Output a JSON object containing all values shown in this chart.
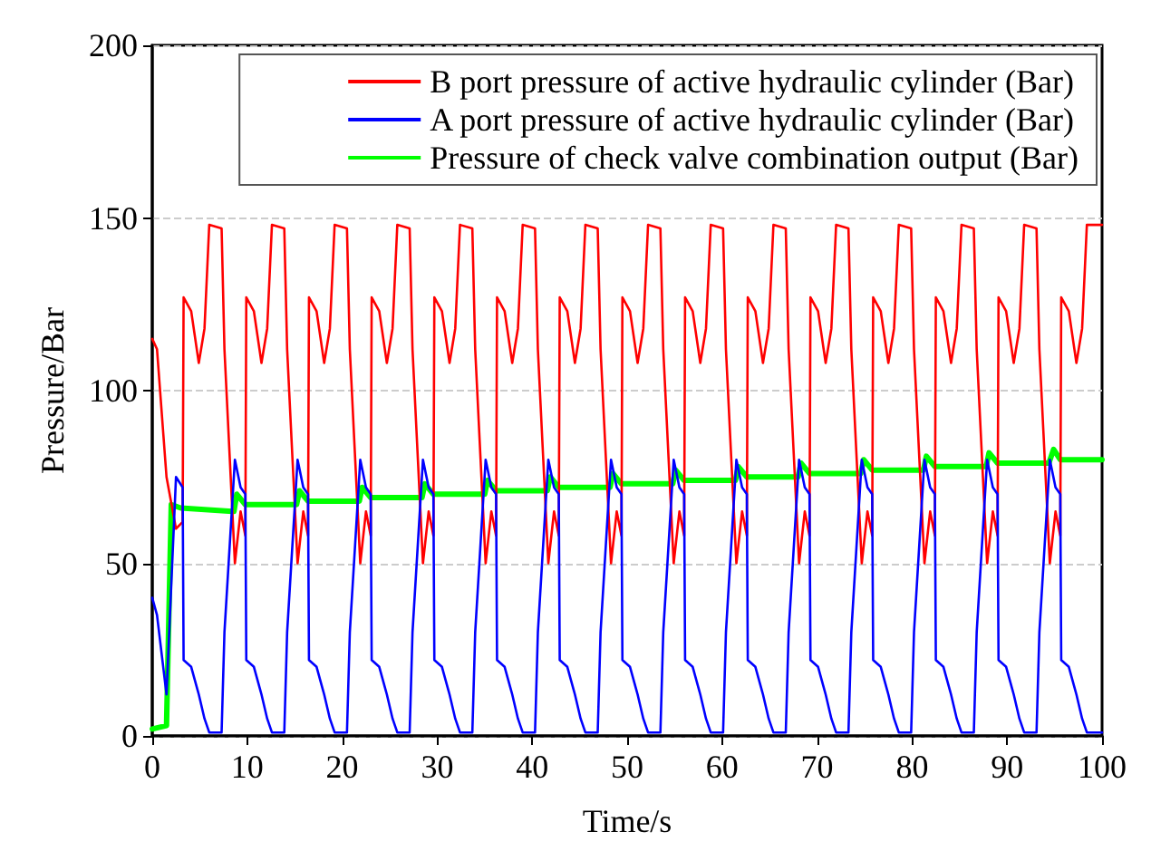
{
  "chart_data": {
    "type": "line",
    "xlabel": "Time/s",
    "ylabel": "Pressure/Bar",
    "xlim": [
      0,
      100
    ],
    "xticks": [
      0,
      10,
      20,
      30,
      40,
      50,
      60,
      70,
      80,
      90,
      100
    ],
    "ylim": [
      0,
      200
    ],
    "yticks": [
      0,
      50,
      100,
      150,
      200
    ],
    "grid": "y",
    "legend": "top right",
    "marker": "none",
    "line_style": "solid",
    "x": [
      0,
      0.5,
      1.5,
      2.5,
      3.2,
      3.3,
      4.1,
      4.9,
      5.5,
      6.0,
      7.3,
      7.6,
      8.7,
      9.3,
      9.8,
      9.9,
      10.7,
      11.5,
      12.1,
      12.6,
      13.9,
      14.2,
      15.3,
      15.9,
      16.4,
      16.5,
      17.3,
      18.1,
      18.7,
      19.2,
      20.5,
      20.8,
      21.9,
      22.5,
      23.0,
      23.1,
      23.9,
      24.7,
      25.3,
      25.8,
      27.1,
      27.4,
      28.5,
      29.1,
      29.6,
      29.7,
      30.5,
      31.3,
      31.9,
      32.4,
      33.7,
      34.0,
      35.1,
      35.7,
      36.2,
      36.3,
      37.1,
      37.9,
      38.5,
      39.0,
      40.3,
      40.6,
      41.7,
      42.3,
      42.8,
      42.9,
      43.7,
      44.5,
      45.1,
      45.6,
      46.9,
      47.2,
      48.3,
      48.9,
      49.4,
      49.5,
      50.3,
      51.1,
      51.7,
      52.2,
      53.5,
      53.8,
      54.9,
      55.5,
      56.0,
      56.1,
      56.9,
      57.7,
      58.3,
      58.8,
      60.1,
      60.4,
      61.5,
      62.1,
      62.6,
      62.7,
      63.5,
      64.3,
      64.9,
      65.4,
      66.7,
      67.0,
      68.1,
      68.7,
      69.2,
      69.3,
      70.1,
      70.9,
      71.5,
      72.0,
      73.3,
      73.6,
      74.7,
      75.3,
      75.8,
      75.9,
      76.7,
      77.5,
      78.1,
      78.6,
      79.9,
      80.2,
      81.3,
      81.9,
      82.4,
      82.5,
      83.3,
      84.1,
      84.7,
      85.2,
      86.5,
      86.8,
      87.9,
      88.5,
      89.0,
      89.1,
      89.9,
      90.7,
      91.3,
      91.8,
      93.1,
      93.4,
      94.5,
      95.1,
      95.6,
      95.7,
      96.5,
      97.3,
      97.9,
      98.4,
      100
    ],
    "series": [
      {
        "name": "B port pressure of active hydraulic cylinder (Bar)",
        "color": "#ff0000",
        "values": [
          115,
          112,
          75,
          60,
          62,
          127,
          123,
          108,
          118,
          148,
          147,
          112,
          50,
          65,
          58,
          127,
          123,
          108,
          118,
          148,
          147,
          112,
          50,
          65,
          58,
          127,
          123,
          108,
          118,
          148,
          147,
          112,
          50,
          65,
          58,
          127,
          123,
          108,
          118,
          148,
          147,
          112,
          50,
          65,
          58,
          127,
          123,
          108,
          118,
          148,
          147,
          112,
          50,
          65,
          58,
          127,
          123,
          108,
          118,
          148,
          147,
          112,
          50,
          65,
          58,
          127,
          123,
          108,
          118,
          148,
          147,
          112,
          50,
          65,
          58,
          127,
          123,
          108,
          118,
          148,
          147,
          112,
          50,
          65,
          58,
          127,
          123,
          108,
          118,
          148,
          147,
          112,
          50,
          65,
          58,
          127,
          123,
          108,
          118,
          148,
          147,
          112,
          50,
          65,
          58,
          127,
          123,
          108,
          118,
          148,
          147,
          112,
          50,
          65,
          58,
          127,
          123,
          108,
          118,
          148,
          147,
          112,
          50,
          65,
          58,
          127,
          123,
          108,
          118,
          148,
          147,
          112,
          50,
          65,
          58,
          127,
          123,
          108,
          118,
          148,
          147,
          112,
          50,
          65,
          58,
          127,
          123,
          108,
          118,
          148,
          148
        ]
      },
      {
        "name": "A port pressure of active hydraulic cylinder (Bar)",
        "color": "#0000ff",
        "values": [
          40,
          35,
          12,
          75,
          72,
          22,
          20,
          12,
          5,
          1,
          1,
          30,
          80,
          72,
          70,
          22,
          20,
          12,
          5,
          1,
          1,
          30,
          80,
          72,
          70,
          22,
          20,
          12,
          5,
          1,
          1,
          30,
          80,
          72,
          70,
          22,
          20,
          12,
          5,
          1,
          1,
          30,
          80,
          72,
          70,
          22,
          20,
          12,
          5,
          1,
          1,
          30,
          80,
          72,
          70,
          22,
          20,
          12,
          5,
          1,
          1,
          30,
          80,
          72,
          70,
          22,
          20,
          12,
          5,
          1,
          1,
          30,
          80,
          72,
          70,
          22,
          20,
          12,
          5,
          1,
          1,
          30,
          80,
          72,
          70,
          22,
          20,
          12,
          5,
          1,
          1,
          30,
          80,
          72,
          70,
          22,
          20,
          12,
          5,
          1,
          1,
          30,
          80,
          72,
          70,
          22,
          20,
          12,
          5,
          1,
          1,
          30,
          80,
          72,
          70,
          22,
          20,
          12,
          5,
          1,
          1,
          30,
          80,
          72,
          70,
          22,
          20,
          12,
          5,
          1,
          1,
          30,
          80,
          72,
          70,
          22,
          20,
          12,
          5,
          1,
          1,
          30,
          80,
          72,
          70,
          22,
          20,
          12,
          5,
          1,
          1
        ]
      },
      {
        "name": "Pressure of check valve combination output (Bar)",
        "color": "#00ff00",
        "x": [
          0,
          1.5,
          2.0,
          3.0,
          8.6,
          8.9,
          9.8,
          15.2,
          15.5,
          16.4,
          21.8,
          22.1,
          23.0,
          28.4,
          28.7,
          29.6,
          35.0,
          35.3,
          36.2,
          41.6,
          41.9,
          42.8,
          48.2,
          48.5,
          49.4,
          54.8,
          55.1,
          56.0,
          61.4,
          61.7,
          62.6,
          68.0,
          68.3,
          69.2,
          74.6,
          74.9,
          75.8,
          81.2,
          81.5,
          82.4,
          87.8,
          88.1,
          89.0,
          94.4,
          94.9,
          95.6,
          100
        ],
        "values": [
          2,
          3,
          67,
          66,
          65,
          70,
          67,
          67,
          71,
          68,
          68,
          72,
          69,
          69,
          73,
          70,
          70,
          74,
          71,
          71,
          75,
          72,
          72,
          76,
          73,
          73,
          77,
          74,
          74,
          78,
          75,
          75,
          79,
          76,
          76,
          80,
          77,
          77,
          81,
          78,
          78,
          82,
          79,
          79,
          83,
          80,
          80
        ]
      }
    ]
  }
}
